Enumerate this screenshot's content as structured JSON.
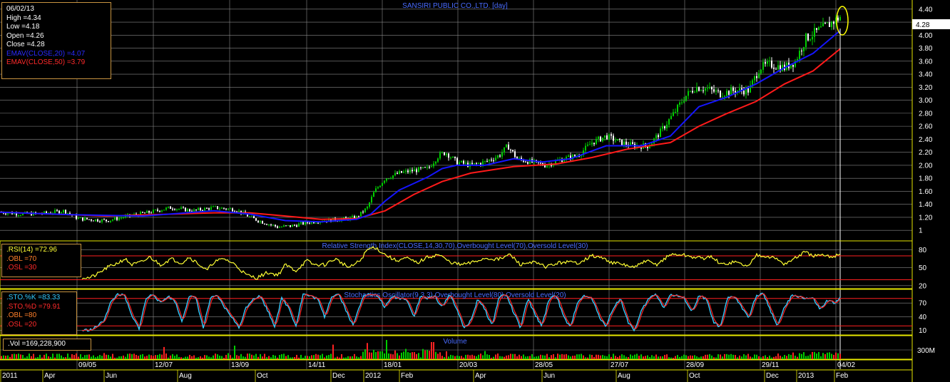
{
  "chart_data": [
    {
      "type": "candlestick",
      "title": "SANSIRI PUBLIC CO.,LTD. [day]",
      "ylim": [
        0.86,
        4.54
      ],
      "y_ticks": [
        "4.40",
        "4.20",
        "4.00",
        "3.80",
        "3.60",
        "3.40",
        "3.20",
        "3.00",
        "2.80",
        "2.60",
        "2.40",
        "2.20",
        "2.00",
        "1.80",
        "1.60",
        "1.40",
        "1.20",
        "1"
      ],
      "last_price": "4.28",
      "info_box": {
        "date": "06/02/13",
        "high": "High =4.34",
        "low": "Low =4.18",
        "open": "Open =4.26",
        "close": "Close =4.28",
        "ema20": "EMAV(CLOSE,20) =4.07",
        "ema50": "EMAV(CLOSE,50) =3.79"
      },
      "close_path_points": [
        [
          0,
          1.28
        ],
        [
          30,
          1.25
        ],
        [
          60,
          1.26
        ],
        [
          90,
          1.3
        ],
        [
          110,
          1.18
        ],
        [
          150,
          1.15
        ],
        [
          180,
          1.22
        ],
        [
          210,
          1.28
        ],
        [
          240,
          1.35
        ],
        [
          270,
          1.3
        ],
        [
          300,
          1.35
        ],
        [
          330,
          1.32
        ],
        [
          355,
          1.18
        ],
        [
          370,
          1.12
        ],
        [
          390,
          1.05
        ],
        [
          410,
          1.07
        ],
        [
          430,
          1.12
        ],
        [
          450,
          1.15
        ],
        [
          480,
          1.17
        ],
        [
          500,
          1.2
        ],
        [
          515,
          1.35
        ],
        [
          525,
          1.6
        ],
        [
          540,
          1.8
        ],
        [
          560,
          1.88
        ],
        [
          580,
          1.92
        ],
        [
          600,
          1.95
        ],
        [
          615,
          2.15
        ],
        [
          625,
          2.2
        ],
        [
          640,
          2.05
        ],
        [
          660,
          2.0
        ],
        [
          680,
          2.05
        ],
        [
          700,
          2.15
        ],
        [
          712,
          2.3
        ],
        [
          725,
          2.1
        ],
        [
          745,
          2.05
        ],
        [
          765,
          2.0
        ],
        [
          790,
          2.1
        ],
        [
          810,
          2.15
        ],
        [
          830,
          2.35
        ],
        [
          850,
          2.45
        ],
        [
          870,
          2.35
        ],
        [
          890,
          2.3
        ],
        [
          910,
          2.3
        ],
        [
          925,
          2.5
        ],
        [
          945,
          2.8
        ],
        [
          960,
          3.05
        ],
        [
          975,
          3.2
        ],
        [
          990,
          3.18
        ],
        [
          1010,
          3.1
        ],
        [
          1030,
          3.15
        ],
        [
          1050,
          3.15
        ],
        [
          1065,
          3.5
        ],
        [
          1080,
          3.55
        ],
        [
          1100,
          3.5
        ],
        [
          1115,
          3.6
        ],
        [
          1130,
          3.95
        ],
        [
          1145,
          4.05
        ],
        [
          1160,
          4.15
        ],
        [
          1170,
          4.22
        ],
        [
          1178,
          4.28
        ]
      ],
      "ema20_points": [
        [
          0,
          1.28
        ],
        [
          100,
          1.24
        ],
        [
          200,
          1.22
        ],
        [
          300,
          1.3
        ],
        [
          350,
          1.25
        ],
        [
          400,
          1.15
        ],
        [
          450,
          1.13
        ],
        [
          500,
          1.17
        ],
        [
          520,
          1.25
        ],
        [
          540,
          1.45
        ],
        [
          560,
          1.62
        ],
        [
          580,
          1.72
        ],
        [
          600,
          1.82
        ],
        [
          620,
          1.95
        ],
        [
          640,
          2.0
        ],
        [
          680,
          2.0
        ],
        [
          720,
          2.1
        ],
        [
          760,
          2.05
        ],
        [
          800,
          2.1
        ],
        [
          850,
          2.3
        ],
        [
          900,
          2.3
        ],
        [
          940,
          2.45
        ],
        [
          980,
          2.9
        ],
        [
          1020,
          3.05
        ],
        [
          1060,
          3.25
        ],
        [
          1100,
          3.5
        ],
        [
          1140,
          3.72
        ],
        [
          1178,
          4.07
        ]
      ],
      "ema50_points": [
        [
          0,
          1.28
        ],
        [
          150,
          1.22
        ],
        [
          300,
          1.27
        ],
        [
          350,
          1.27
        ],
        [
          400,
          1.22
        ],
        [
          450,
          1.17
        ],
        [
          500,
          1.18
        ],
        [
          540,
          1.3
        ],
        [
          580,
          1.55
        ],
        [
          620,
          1.75
        ],
        [
          660,
          1.88
        ],
        [
          720,
          1.98
        ],
        [
          780,
          2.02
        ],
        [
          830,
          2.12
        ],
        [
          880,
          2.25
        ],
        [
          940,
          2.35
        ],
        [
          980,
          2.6
        ],
        [
          1020,
          2.8
        ],
        [
          1060,
          2.98
        ],
        [
          1100,
          3.25
        ],
        [
          1140,
          3.45
        ],
        [
          1178,
          3.79
        ]
      ]
    },
    {
      "type": "line",
      "title": "Relative Strength Index(CLOSE,14,30,70),Overbought Level(70),Oversold Level(30)",
      "ylim": [
        15,
        95
      ],
      "y_ticks": [
        "80",
        "50",
        "20"
      ],
      "overbought": 70,
      "oversold": 30,
      "info": {
        "rsi": ".RSI(14) =72.96",
        "obl": ".OBL =70",
        "osl": ".OSL =30"
      },
      "rsi_points": [
        [
          115,
          34
        ],
        [
          125,
          33
        ],
        [
          135,
          38
        ],
        [
          150,
          50
        ],
        [
          165,
          58
        ],
        [
          175,
          65
        ],
        [
          185,
          55
        ],
        [
          200,
          60
        ],
        [
          210,
          68
        ],
        [
          225,
          55
        ],
        [
          240,
          65
        ],
        [
          255,
          58
        ],
        [
          265,
          68
        ],
        [
          280,
          55
        ],
        [
          290,
          45
        ],
        [
          300,
          60
        ],
        [
          315,
          65
        ],
        [
          330,
          55
        ],
        [
          345,
          38
        ],
        [
          360,
          33
        ],
        [
          375,
          42
        ],
        [
          390,
          38
        ],
        [
          400,
          55
        ],
        [
          415,
          45
        ],
        [
          430,
          62
        ],
        [
          440,
          55
        ],
        [
          455,
          55
        ],
        [
          470,
          65
        ],
        [
          490,
          50
        ],
        [
          505,
          62
        ],
        [
          515,
          80
        ],
        [
          525,
          85
        ],
        [
          540,
          72
        ],
        [
          555,
          62
        ],
        [
          570,
          66
        ],
        [
          585,
          58
        ],
        [
          600,
          68
        ],
        [
          615,
          72
        ],
        [
          630,
          60
        ],
        [
          645,
          55
        ],
        [
          660,
          58
        ],
        [
          680,
          66
        ],
        [
          700,
          64
        ],
        [
          715,
          72
        ],
        [
          730,
          55
        ],
        [
          745,
          60
        ],
        [
          765,
          52
        ],
        [
          790,
          60
        ],
        [
          810,
          58
        ],
        [
          830,
          70
        ],
        [
          845,
          66
        ],
        [
          860,
          58
        ],
        [
          875,
          55
        ],
        [
          890,
          50
        ],
        [
          905,
          62
        ],
        [
          920,
          55
        ],
        [
          940,
          72
        ],
        [
          955,
          72
        ],
        [
          970,
          68
        ],
        [
          985,
          66
        ],
        [
          1000,
          68
        ],
        [
          1010,
          55
        ],
        [
          1030,
          60
        ],
        [
          1050,
          52
        ],
        [
          1060,
          72
        ],
        [
          1075,
          70
        ],
        [
          1090,
          64
        ],
        [
          1100,
          56
        ],
        [
          1115,
          66
        ],
        [
          1128,
          76
        ],
        [
          1140,
          70
        ],
        [
          1155,
          70
        ],
        [
          1165,
          68
        ],
        [
          1178,
          72.96
        ]
      ]
    },
    {
      "type": "line",
      "title": "Stochastics Oscillator(9,3,3),Overbought Level(80),Oversold Level(20)",
      "ylim": [
        0,
        100
      ],
      "y_ticks": [
        "70",
        "40",
        "10"
      ],
      "overbought": 80,
      "oversold": 20,
      "info": {
        "k": ".STO.%K =83.33",
        "d": ".STO.%D =79.91",
        "obl": ".OBL =80",
        "osl": ".OSL =20"
      },
      "k_points": [
        [
          115,
          10
        ],
        [
          130,
          12
        ],
        [
          145,
          30
        ],
        [
          155,
          70
        ],
        [
          165,
          90
        ],
        [
          175,
          85
        ],
        [
          185,
          40
        ],
        [
          195,
          15
        ],
        [
          205,
          80
        ],
        [
          215,
          90
        ],
        [
          225,
          70
        ],
        [
          235,
          85
        ],
        [
          245,
          75
        ],
        [
          255,
          30
        ],
        [
          265,
          85
        ],
        [
          275,
          80
        ],
        [
          285,
          15
        ],
        [
          295,
          80
        ],
        [
          305,
          85
        ],
        [
          315,
          60
        ],
        [
          325,
          40
        ],
        [
          335,
          15
        ],
        [
          345,
          60
        ],
        [
          355,
          80
        ],
        [
          365,
          85
        ],
        [
          375,
          55
        ],
        [
          385,
          20
        ],
        [
          395,
          80
        ],
        [
          405,
          60
        ],
        [
          415,
          20
        ],
        [
          425,
          90
        ],
        [
          435,
          85
        ],
        [
          445,
          80
        ],
        [
          455,
          40
        ],
        [
          465,
          85
        ],
        [
          475,
          90
        ],
        [
          485,
          55
        ],
        [
          495,
          20
        ],
        [
          510,
          90
        ],
        [
          520,
          88
        ],
        [
          530,
          85
        ],
        [
          540,
          60
        ],
        [
          550,
          85
        ],
        [
          560,
          80
        ],
        [
          570,
          80
        ],
        [
          580,
          40
        ],
        [
          590,
          85
        ],
        [
          600,
          80
        ],
        [
          610,
          85
        ],
        [
          620,
          60
        ],
        [
          630,
          90
        ],
        [
          640,
          60
        ],
        [
          650,
          15
        ],
        [
          660,
          30
        ],
        [
          670,
          80
        ],
        [
          680,
          55
        ],
        [
          690,
          20
        ],
        [
          700,
          85
        ],
        [
          710,
          88
        ],
        [
          720,
          50
        ],
        [
          730,
          15
        ],
        [
          740,
          80
        ],
        [
          750,
          45
        ],
        [
          760,
          20
        ],
        [
          770,
          80
        ],
        [
          780,
          88
        ],
        [
          790,
          40
        ],
        [
          800,
          15
        ],
        [
          810,
          75
        ],
        [
          820,
          85
        ],
        [
          830,
          80
        ],
        [
          840,
          40
        ],
        [
          850,
          20
        ],
        [
          860,
          60
        ],
        [
          870,
          80
        ],
        [
          880,
          30
        ],
        [
          890,
          10
        ],
        [
          900,
          55
        ],
        [
          910,
          80
        ],
        [
          920,
          90
        ],
        [
          930,
          60
        ],
        [
          940,
          88
        ],
        [
          950,
          85
        ],
        [
          960,
          80
        ],
        [
          970,
          50
        ],
        [
          980,
          85
        ],
        [
          990,
          80
        ],
        [
          1000,
          30
        ],
        [
          1010,
          15
        ],
        [
          1020,
          80
        ],
        [
          1030,
          85
        ],
        [
          1040,
          60
        ],
        [
          1050,
          40
        ],
        [
          1060,
          85
        ],
        [
          1070,
          90
        ],
        [
          1080,
          55
        ],
        [
          1090,
          20
        ],
        [
          1100,
          60
        ],
        [
          1110,
          85
        ],
        [
          1120,
          85
        ],
        [
          1130,
          80
        ],
        [
          1140,
          80
        ],
        [
          1150,
          55
        ],
        [
          1160,
          75
        ],
        [
          1170,
          70
        ],
        [
          1178,
          83.33
        ]
      ]
    },
    {
      "type": "bar",
      "title": "Volume",
      "info": {
        "vol": ".Vol =169,228,900"
      },
      "y_tick": "300M"
    }
  ],
  "x_axis": {
    "labels_row1": [
      "09/05",
      "12/07",
      "13/09",
      "14/11",
      "18/01",
      "20/03",
      "28/05",
      "27/07",
      "28/09",
      "29/11",
      "04/02"
    ],
    "labels_row2": [
      "2011",
      "Apr",
      "Jun",
      "Aug",
      "Oct",
      "Dec",
      "2012",
      "Feb",
      "Apr",
      "Jun",
      "Aug",
      "Oct",
      "Dec",
      "2013",
      "Feb"
    ]
  },
  "colors": {
    "background": "#000000",
    "grid": "#8a8a8a",
    "panel_border": "#e6e600",
    "candle_up": "#00cc00",
    "candle_down": "#ffffff",
    "ema20": "#1515ff",
    "ema50": "#ff1a1a",
    "rsi": "#ffff33",
    "sto_k": "#33ccff",
    "sto_d": "#ff2222",
    "title": "#4a6cff",
    "level_line": "#ff2020"
  }
}
